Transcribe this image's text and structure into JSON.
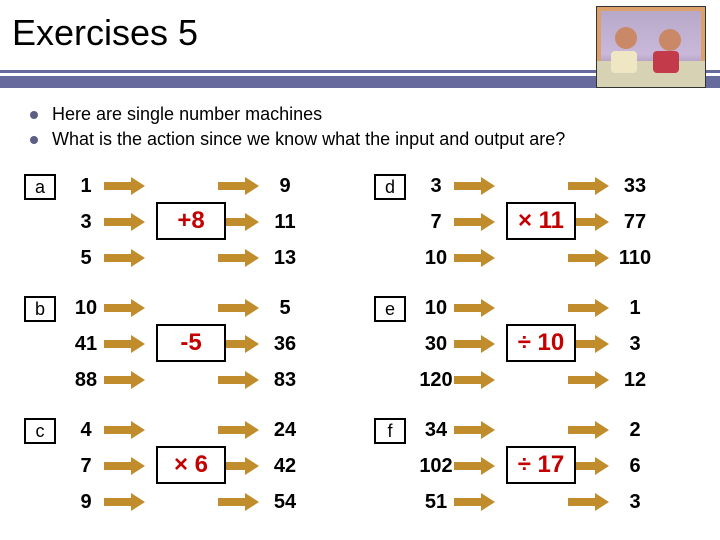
{
  "title": "Exercises 5",
  "bullets": [
    "Here are single number machines",
    "What is the action since we know what the input and output are?"
  ],
  "arrow_color": "#c08c2c",
  "op_color": "#c40000",
  "left_machines": [
    {
      "label": "a",
      "op": "+8",
      "rows": [
        {
          "in": "1",
          "out": "9"
        },
        {
          "in": "3",
          "out": "11"
        },
        {
          "in": "5",
          "out": "13"
        }
      ]
    },
    {
      "label": "b",
      "op": "-5",
      "rows": [
        {
          "in": "10",
          "out": "5"
        },
        {
          "in": "41",
          "out": "36"
        },
        {
          "in": "88",
          "out": "83"
        }
      ]
    },
    {
      "label": "c",
      "op": "× 6",
      "rows": [
        {
          "in": "4",
          "out": "24"
        },
        {
          "in": "7",
          "out": "42"
        },
        {
          "in": "9",
          "out": "54"
        }
      ]
    }
  ],
  "right_machines": [
    {
      "label": "d",
      "op": "× 11",
      "rows": [
        {
          "in": "3",
          "out": "33"
        },
        {
          "in": "7",
          "out": "77"
        },
        {
          "in": "10",
          "out": "110"
        }
      ]
    },
    {
      "label": "e",
      "op": "÷ 10",
      "rows": [
        {
          "in": "10",
          "out": "1"
        },
        {
          "in": "30",
          "out": "3"
        },
        {
          "in": "120",
          "out": "12"
        }
      ]
    },
    {
      "label": "f",
      "op": "÷ 17",
      "rows": [
        {
          "in": "34",
          "out": "2"
        },
        {
          "in": "102",
          "out": "6"
        },
        {
          "in": "51",
          "out": "3"
        }
      ]
    }
  ]
}
